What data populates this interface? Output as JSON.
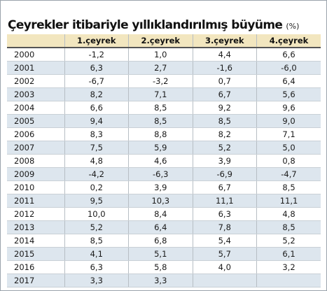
{
  "title": "Çeyrekler itibariyle yıllıklandırılmış büyüme",
  "title_unit": "(%)",
  "table": {
    "columns": [
      "",
      "1.çeyrek",
      "2.çeyrek",
      "3.çeyrek",
      "4.çeyrek"
    ],
    "rows": [
      {
        "year": "2000",
        "q1": "-1,2",
        "q2": "1,0",
        "q3": "4,4",
        "q4": "6,6"
      },
      {
        "year": "2001",
        "q1": "6,3",
        "q2": "2,7",
        "q3": "-1,6",
        "q4": "-6,0"
      },
      {
        "year": "2002",
        "q1": "-6,7",
        "q2": "-3,2",
        "q3": "0,7",
        "q4": "6,4"
      },
      {
        "year": "2003",
        "q1": "8,2",
        "q2": "7,1",
        "q3": "6,7",
        "q4": "5,6"
      },
      {
        "year": "2004",
        "q1": "6,6",
        "q2": "8,5",
        "q3": "9,2",
        "q4": "9,6"
      },
      {
        "year": "2005",
        "q1": "9,4",
        "q2": "8,5",
        "q3": "8,5",
        "q4": "9,0"
      },
      {
        "year": "2006",
        "q1": "8,3",
        "q2": "8,8",
        "q3": "8,2",
        "q4": "7,1"
      },
      {
        "year": "2007",
        "q1": "7,5",
        "q2": "5,9",
        "q3": "5,2",
        "q4": "5,0"
      },
      {
        "year": "2008",
        "q1": "4,8",
        "q2": "4,6",
        "q3": "3,9",
        "q4": "0,8"
      },
      {
        "year": "2009",
        "q1": "-4,2",
        "q2": "-6,3",
        "q3": "-6,9",
        "q4": "-4,7"
      },
      {
        "year": "2010",
        "q1": "0,2",
        "q2": "3,9",
        "q3": "6,7",
        "q4": "8,5"
      },
      {
        "year": "2011",
        "q1": "9,5",
        "q2": "10,3",
        "q3": "11,1",
        "q4": "11,1"
      },
      {
        "year": "2012",
        "q1": "10,0",
        "q2": "8,4",
        "q3": "6,3",
        "q4": "4,8"
      },
      {
        "year": "2013",
        "q1": "5,2",
        "q2": "6,4",
        "q3": "7,8",
        "q4": "8,5"
      },
      {
        "year": "2014",
        "q1": "8,5",
        "q2": "6,8",
        "q3": "5,4",
        "q4": "5,2"
      },
      {
        "year": "2015",
        "q1": "4,1",
        "q2": "5,1",
        "q3": "5,7",
        "q4": "6,1"
      },
      {
        "year": "2016",
        "q1": "6,3",
        "q2": "5,8",
        "q3": "4,0",
        "q4": "3,2"
      },
      {
        "year": "2017",
        "q1": "3,3",
        "q2": "3,3",
        "q3": "",
        "q4": ""
      }
    ]
  },
  "colors": {
    "header_background": "#f2e6bf",
    "stripe_background": "#dde6ee",
    "border": "#9aa3ab"
  }
}
